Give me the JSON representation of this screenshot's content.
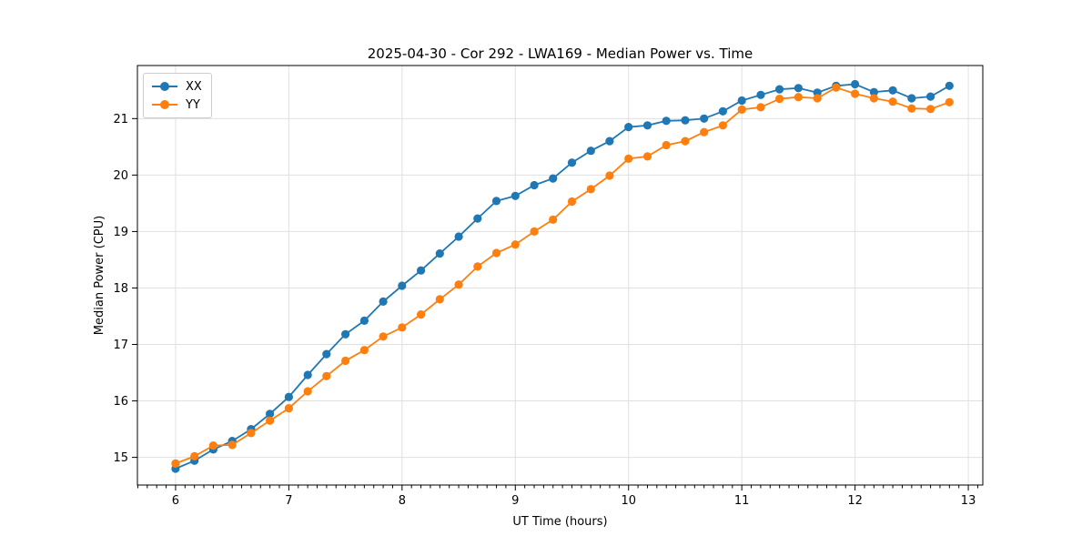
{
  "window": {
    "background": "#ffffff"
  },
  "chart_data": {
    "type": "line",
    "title": "2025-04-30 - Cor 292 - LWA169 - Median Power vs. Time",
    "xlabel": "UT Time (hours)",
    "ylabel": "Median Power (CPU)",
    "xlim": [
      5.663,
      13.128
    ],
    "ylim": [
      14.51,
      21.94
    ],
    "x_major_ticks": [
      6,
      7,
      8,
      9,
      10,
      11,
      12,
      13
    ],
    "y_major_ticks": [
      15,
      16,
      17,
      18,
      19,
      20,
      21
    ],
    "x_minor_tick_interval_hours": 0.08333,
    "grid": "major gridlines only, light gray",
    "legend_position": "upper left",
    "grid_color": "#e0e0e0",
    "spine_color": "#000000",
    "x": [
      6.0,
      6.167,
      6.333,
      6.5,
      6.667,
      6.833,
      7.0,
      7.167,
      7.333,
      7.5,
      7.667,
      7.833,
      8.0,
      8.167,
      8.333,
      8.5,
      8.667,
      8.833,
      9.0,
      9.167,
      9.333,
      9.5,
      9.667,
      9.833,
      10.0,
      10.167,
      10.333,
      10.5,
      10.667,
      10.833,
      11.0,
      11.167,
      11.333,
      11.5,
      11.667,
      11.833,
      12.0,
      12.167,
      12.333,
      12.5,
      12.667,
      12.833
    ],
    "series": [
      {
        "name": "XX",
        "color": "#1f77b4",
        "values": [
          14.8,
          14.94,
          15.14,
          15.29,
          15.5,
          15.77,
          16.07,
          16.46,
          16.83,
          17.18,
          17.42,
          17.76,
          18.04,
          18.31,
          18.61,
          18.91,
          19.23,
          19.54,
          19.63,
          19.82,
          19.94,
          20.22,
          20.43,
          20.6,
          20.85,
          20.88,
          20.96,
          20.97,
          21.0,
          21.13,
          21.32,
          21.42,
          21.52,
          21.54,
          21.46,
          21.58,
          21.61,
          21.47,
          21.5,
          21.36,
          21.39,
          21.58
        ]
      },
      {
        "name": "YY",
        "color": "#ff7f0e",
        "values": [
          14.89,
          15.02,
          15.21,
          15.22,
          15.43,
          15.65,
          15.87,
          16.17,
          16.44,
          16.71,
          16.9,
          17.14,
          17.3,
          17.53,
          17.8,
          18.06,
          18.38,
          18.62,
          18.77,
          19.0,
          19.21,
          19.53,
          19.75,
          19.99,
          20.29,
          20.33,
          20.53,
          20.6,
          20.76,
          20.88,
          21.16,
          21.2,
          21.35,
          21.38,
          21.36,
          21.55,
          21.44,
          21.36,
          21.3,
          21.18,
          21.17,
          21.29
        ]
      }
    ]
  }
}
